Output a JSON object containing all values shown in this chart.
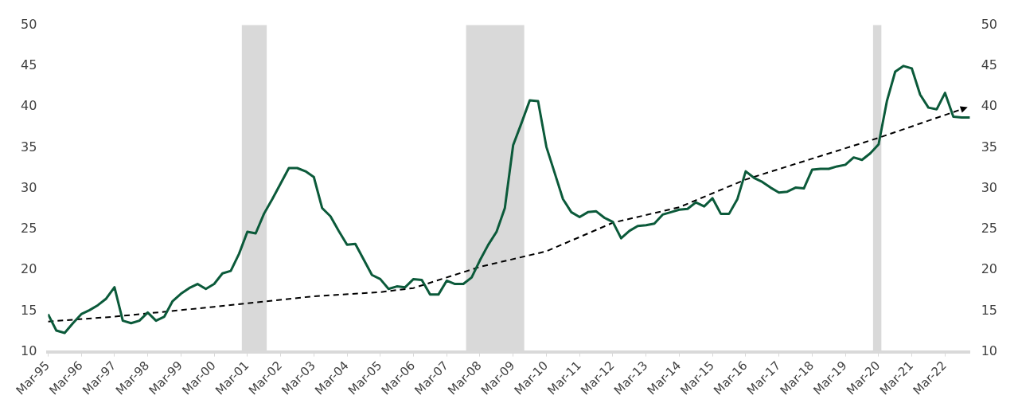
{
  "chart_data": {
    "type": "line",
    "x": [
      "1995-03",
      "1995-06",
      "1995-09",
      "1995-12",
      "1996-03",
      "1996-06",
      "1996-09",
      "1996-12",
      "1997-03",
      "1997-06",
      "1997-09",
      "1997-12",
      "1998-03",
      "1998-06",
      "1998-09",
      "1998-12",
      "1999-03",
      "1999-06",
      "1999-09",
      "1999-12",
      "2000-03",
      "2000-06",
      "2000-09",
      "2000-12",
      "2001-03",
      "2001-06",
      "2001-09",
      "2001-12",
      "2002-03",
      "2002-06",
      "2002-09",
      "2002-12",
      "2003-03",
      "2003-06",
      "2003-09",
      "2003-12",
      "2004-03",
      "2004-06",
      "2004-09",
      "2004-12",
      "2005-03",
      "2005-06",
      "2005-09",
      "2005-12",
      "2006-03",
      "2006-06",
      "2006-09",
      "2006-12",
      "2007-03",
      "2007-06",
      "2007-09",
      "2007-12",
      "2008-03",
      "2008-06",
      "2008-09",
      "2008-12",
      "2009-03",
      "2009-06",
      "2009-09",
      "2009-12",
      "2010-03",
      "2010-06",
      "2010-09",
      "2010-12",
      "2011-03",
      "2011-06",
      "2011-09",
      "2011-12",
      "2012-03",
      "2012-06",
      "2012-09",
      "2012-12",
      "2013-03",
      "2013-06",
      "2013-09",
      "2013-12",
      "2014-03",
      "2014-06",
      "2014-09",
      "2014-12",
      "2015-03",
      "2015-06",
      "2015-09",
      "2015-12",
      "2016-03",
      "2016-06",
      "2016-09",
      "2016-12",
      "2017-03",
      "2017-06",
      "2017-09",
      "2017-12",
      "2018-03",
      "2018-06",
      "2018-09",
      "2018-12",
      "2019-03",
      "2019-06",
      "2019-09",
      "2019-12",
      "2020-03",
      "2020-06",
      "2020-09",
      "2020-12",
      "2021-03",
      "2021-06",
      "2021-09",
      "2021-12",
      "2022-03",
      "2022-06",
      "2022-09",
      "2022-12"
    ],
    "series": [
      {
        "color": "#0b5a3a",
        "values": [
          14.6,
          12.6,
          12.3,
          13.5,
          14.6,
          15.1,
          15.7,
          16.5,
          17.9,
          13.8,
          13.5,
          13.8,
          14.8,
          13.8,
          14.3,
          16.2,
          17.1,
          17.8,
          18.3,
          17.7,
          18.3,
          19.6,
          19.9,
          22.0,
          24.7,
          24.5,
          26.9,
          28.7,
          30.6,
          32.5,
          32.5,
          32.1,
          31.4,
          27.6,
          26.6,
          24.8,
          23.1,
          23.2,
          21.3,
          19.4,
          18.9,
          17.7,
          18.0,
          17.9,
          18.9,
          18.8,
          17.0,
          17.0,
          18.7,
          18.3,
          18.3,
          19.1,
          21.2,
          23.1,
          24.7,
          27.6,
          35.3,
          38.0,
          40.8,
          40.7,
          35.1,
          31.9,
          28.7,
          27.1,
          26.5,
          27.1,
          27.2,
          26.4,
          25.9,
          23.9,
          24.8,
          25.4,
          25.5,
          25.7,
          26.8,
          27.1,
          27.4,
          27.5,
          28.3,
          27.8,
          28.8,
          26.9,
          26.9,
          28.7,
          32.1,
          31.3,
          30.8,
          30.1,
          29.5,
          29.6,
          30.1,
          30.0,
          32.3,
          32.4,
          32.4,
          32.7,
          32.9,
          33.8,
          33.5,
          34.3,
          35.4,
          40.7,
          44.3,
          45.0,
          44.7,
          41.5,
          39.9,
          39.7,
          41.7,
          38.8,
          38.7,
          38.7
        ]
      },
      {
        "color": "#000000",
        "line_style": "dashed",
        "x": [
          "1995-03",
          "1997-03",
          "2000-03",
          "2003-03",
          "2005-03",
          "2006-03",
          "2008-03",
          "2010-03",
          "2012-03",
          "2014-03",
          "2016-03",
          "2020-03",
          "2022-09"
        ],
        "values": [
          13.7,
          14.3,
          15.5,
          16.8,
          17.3,
          17.8,
          20.4,
          22.3,
          25.8,
          27.7,
          31.1,
          36.2,
          39.7
        ]
      }
    ],
    "xlim": [
      "1995-03",
      "2022-12"
    ],
    "xticks": [
      {
        "value": "1995-03",
        "label": "Mar-95"
      },
      {
        "value": "1996-03",
        "label": "Mar-96"
      },
      {
        "value": "1997-03",
        "label": "Mar-97"
      },
      {
        "value": "1998-03",
        "label": "Mar-98"
      },
      {
        "value": "1999-03",
        "label": "Mar-99"
      },
      {
        "value": "2000-03",
        "label": "Mar-00"
      },
      {
        "value": "2001-03",
        "label": "Mar-01"
      },
      {
        "value": "2002-03",
        "label": "Mar-02"
      },
      {
        "value": "2003-03",
        "label": "Mar-03"
      },
      {
        "value": "2004-03",
        "label": "Mar-04"
      },
      {
        "value": "2005-03",
        "label": "Mar-05"
      },
      {
        "value": "2006-03",
        "label": "Mar-06"
      },
      {
        "value": "2007-03",
        "label": "Mar-07"
      },
      {
        "value": "2008-03",
        "label": "Mar-08"
      },
      {
        "value": "2009-03",
        "label": "Mar-09"
      },
      {
        "value": "2010-03",
        "label": "Mar-10"
      },
      {
        "value": "2011-03",
        "label": "Mar-11"
      },
      {
        "value": "2012-03",
        "label": "Mar-12"
      },
      {
        "value": "2013-03",
        "label": "Mar-13"
      },
      {
        "value": "2014-03",
        "label": "Mar-14"
      },
      {
        "value": "2015-03",
        "label": "Mar-15"
      },
      {
        "value": "2016-03",
        "label": "Mar-16"
      },
      {
        "value": "2017-03",
        "label": "Mar-17"
      },
      {
        "value": "2018-03",
        "label": "Mar-18"
      },
      {
        "value": "2019-03",
        "label": "Mar-19"
      },
      {
        "value": "2020-03",
        "label": "Mar-20"
      },
      {
        "value": "2021-03",
        "label": "Mar-21"
      },
      {
        "value": "2022-03",
        "label": "Mar-22"
      }
    ],
    "ylim": [
      10,
      50
    ],
    "yticks": [
      10,
      15,
      20,
      25,
      30,
      35,
      40,
      45,
      50
    ],
    "y2lim": [
      10,
      50
    ],
    "y2ticks": [
      10,
      15,
      20,
      25,
      30,
      35,
      40,
      45,
      50
    ],
    "bands": [
      {
        "axis": "x",
        "from": "2001-01",
        "to": "2001-10",
        "color": "#d9d9d9"
      },
      {
        "axis": "x",
        "from": "2007-10",
        "to": "2009-07",
        "color": "#d9d9d9"
      },
      {
        "axis": "x",
        "from": "2020-01",
        "to": "2020-04",
        "color": "#d9d9d9"
      }
    ],
    "grid": false,
    "legend": false,
    "marker": "none",
    "line_style": "solid"
  }
}
